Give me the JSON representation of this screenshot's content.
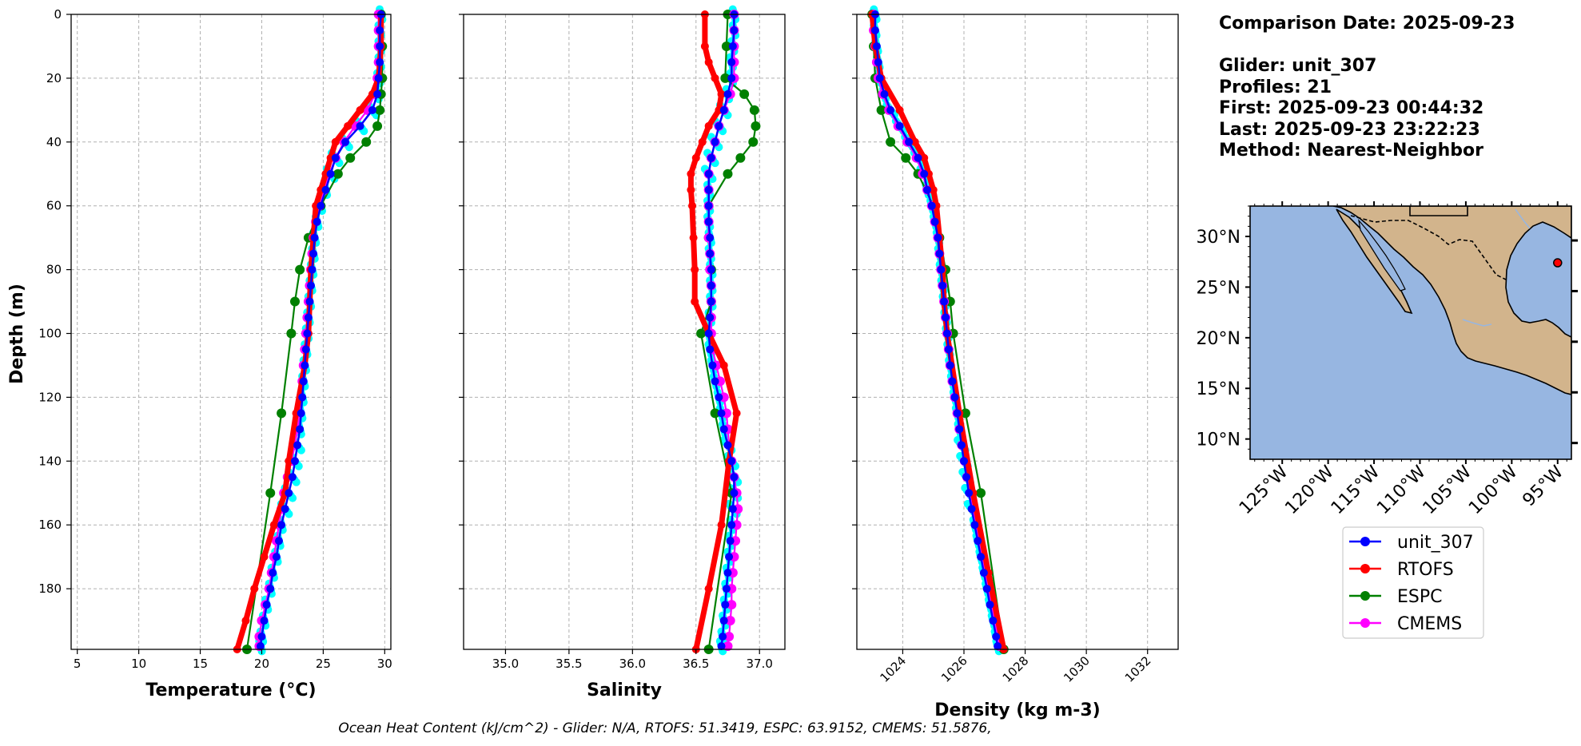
{
  "info": {
    "comparison_date": "Comparison Date: 2025-09-23",
    "glider": "Glider: unit_307",
    "profiles": "Profiles: 21",
    "first": "First: 2025-09-23 00:44:32",
    "last": "Last: 2025-09-23 23:22:23",
    "method": "Method: Nearest-Neighbor"
  },
  "footer": "Ocean Heat Content (kJ/cm^2) - Glider: N/A,  RTOFS: 51.3419,  ESPC: 63.9152,  CMEMS: 51.5876,",
  "colors": {
    "glider": "#0000ff",
    "glider_scatter": "#00ffff",
    "rtofs": "#ff0000",
    "espc": "#008000",
    "cmems": "#ff00ff",
    "ocean": "#97b6e1",
    "land": "#d2b48c"
  },
  "legend": [
    "unit_307",
    "RTOFS",
    "ESPC",
    "CMEMS"
  ],
  "map": {
    "lat_labels": [
      "30°N",
      "25°N",
      "20°N",
      "15°N",
      "10°N"
    ],
    "lon_labels": [
      "125°W",
      "120°W",
      "115°W",
      "110°W",
      "105°W",
      "100°W",
      "95°W"
    ],
    "glider_location": {
      "lon": -95.0,
      "lat": 27.4
    }
  },
  "chart_data": [
    {
      "type": "line",
      "xlabel": "Temperature (°C)",
      "ylabel": "Depth (m)",
      "xlim": [
        4.5,
        30.5
      ],
      "ylim": [
        199,
        0
      ],
      "xticks": [
        5,
        10,
        15,
        20,
        25,
        30
      ],
      "yticks": [
        0,
        20,
        40,
        60,
        80,
        100,
        120,
        140,
        160,
        180
      ],
      "grid": true,
      "series": [
        {
          "name": "unit_307",
          "depth": [
            0,
            5,
            10,
            15,
            20,
            25,
            30,
            35,
            40,
            45,
            50,
            55,
            60,
            65,
            70,
            75,
            80,
            85,
            90,
            95,
            100,
            105,
            110,
            115,
            120,
            125,
            130,
            135,
            140,
            145,
            150,
            155,
            160,
            165,
            170,
            175,
            180,
            185,
            190,
            195,
            198
          ],
          "values": [
            29.7,
            29.6,
            29.6,
            29.6,
            29.5,
            29.4,
            29.0,
            28.0,
            26.8,
            26.0,
            25.6,
            25.2,
            24.8,
            24.5,
            24.3,
            24.2,
            24.1,
            24.0,
            23.9,
            23.8,
            23.7,
            23.6,
            23.5,
            23.4,
            23.3,
            23.2,
            23.1,
            22.9,
            22.7,
            22.5,
            22.2,
            21.9,
            21.6,
            21.4,
            21.2,
            20.9,
            20.7,
            20.4,
            20.2,
            20.0,
            19.9
          ]
        },
        {
          "name": "RTOFS",
          "depth": [
            0,
            10,
            20,
            25,
            30,
            35,
            40,
            45,
            50,
            55,
            60,
            70,
            80,
            90,
            100,
            110,
            125,
            140,
            150,
            160,
            170,
            180,
            190,
            199
          ],
          "values": [
            29.7,
            29.7,
            29.5,
            29.0,
            28.0,
            27.0,
            26.0,
            25.6,
            25.2,
            24.8,
            24.4,
            24.2,
            24.0,
            23.9,
            23.8,
            23.5,
            22.8,
            22.2,
            21.9,
            21.0,
            20.2,
            19.4,
            18.7,
            18.0
          ]
        },
        {
          "name": "ESPC",
          "depth": [
            0,
            10,
            20,
            25,
            30,
            35,
            40,
            45,
            50,
            60,
            70,
            80,
            90,
            100,
            125,
            150,
            199
          ],
          "values": [
            29.7,
            29.8,
            29.8,
            29.7,
            29.6,
            29.4,
            28.5,
            27.2,
            26.2,
            24.8,
            23.8,
            23.1,
            22.7,
            22.4,
            21.6,
            20.7,
            18.8
          ]
        },
        {
          "name": "CMEMS",
          "depth": [
            0,
            5,
            10,
            15,
            20,
            25,
            30,
            35,
            40,
            45,
            50,
            55,
            60,
            65,
            70,
            75,
            80,
            85,
            90,
            95,
            100,
            105,
            110,
            115,
            120,
            125,
            130,
            135,
            140,
            145,
            150,
            155,
            160,
            165,
            170,
            175,
            180,
            185,
            190,
            195,
            198
          ],
          "values": [
            29.5,
            29.5,
            29.5,
            29.5,
            29.4,
            29.2,
            28.6,
            27.6,
            26.7,
            26.0,
            25.5,
            25.1,
            24.7,
            24.4,
            24.2,
            24.1,
            24.0,
            23.9,
            23.8,
            23.7,
            23.6,
            23.5,
            23.4,
            23.3,
            23.2,
            23.1,
            22.9,
            22.7,
            22.4,
            22.1,
            21.8,
            21.6,
            21.4,
            21.2,
            21.0,
            20.8,
            20.6,
            20.3,
            20.0,
            19.8,
            19.8
          ]
        }
      ]
    },
    {
      "type": "line",
      "xlabel": "Salinity",
      "ylim": [
        199,
        0
      ],
      "xlim": [
        34.67,
        37.2
      ],
      "xticks": [
        35.0,
        35.5,
        36.0,
        36.5,
        37.0
      ],
      "grid": true,
      "series": [
        {
          "name": "unit_307",
          "depth": [
            0,
            5,
            10,
            15,
            20,
            25,
            30,
            35,
            40,
            45,
            50,
            55,
            60,
            65,
            70,
            75,
            80,
            85,
            90,
            95,
            100,
            105,
            110,
            115,
            120,
            125,
            130,
            135,
            140,
            145,
            150,
            155,
            160,
            165,
            170,
            175,
            180,
            185,
            190,
            195,
            198
          ],
          "values": [
            36.8,
            36.8,
            36.79,
            36.78,
            36.78,
            36.75,
            36.72,
            36.68,
            36.65,
            36.62,
            36.6,
            36.6,
            36.6,
            36.6,
            36.61,
            36.61,
            36.62,
            36.62,
            36.62,
            36.61,
            36.6,
            36.61,
            36.63,
            36.65,
            36.68,
            36.7,
            36.72,
            36.75,
            36.78,
            36.8,
            36.8,
            36.79,
            36.78,
            36.77,
            36.76,
            36.75,
            36.74,
            36.73,
            36.72,
            36.71,
            36.7
          ]
        },
        {
          "name": "RTOFS",
          "depth": [
            0,
            10,
            15,
            20,
            25,
            30,
            35,
            40,
            45,
            50,
            55,
            60,
            70,
            80,
            90,
            100,
            110,
            125,
            140,
            160,
            180,
            199
          ],
          "values": [
            36.57,
            36.57,
            36.6,
            36.65,
            36.7,
            36.68,
            36.6,
            36.55,
            36.5,
            36.46,
            36.46,
            36.47,
            36.48,
            36.49,
            36.49,
            36.6,
            36.72,
            36.82,
            36.76,
            36.7,
            36.6,
            36.5
          ]
        },
        {
          "name": "ESPC",
          "depth": [
            0,
            10,
            20,
            25,
            30,
            35,
            40,
            45,
            50,
            60,
            70,
            80,
            90,
            100,
            125,
            150,
            199
          ],
          "values": [
            36.75,
            36.74,
            36.73,
            36.88,
            36.96,
            36.97,
            36.95,
            36.85,
            36.75,
            36.6,
            36.6,
            36.62,
            36.62,
            36.54,
            36.65,
            36.78,
            36.6
          ]
        },
        {
          "name": "CMEMS",
          "depth": [
            0,
            5,
            10,
            15,
            20,
            25,
            30,
            35,
            40,
            45,
            50,
            55,
            60,
            65,
            70,
            75,
            80,
            85,
            90,
            95,
            100,
            105,
            110,
            115,
            120,
            125,
            130,
            135,
            140,
            145,
            150,
            155,
            160,
            165,
            170,
            175,
            180,
            185,
            190,
            195,
            198
          ],
          "values": [
            36.8,
            36.8,
            36.8,
            36.8,
            36.8,
            36.77,
            36.72,
            36.68,
            36.65,
            36.62,
            36.6,
            36.6,
            36.6,
            36.6,
            36.6,
            36.61,
            36.61,
            36.62,
            36.62,
            36.62,
            36.62,
            36.63,
            36.66,
            36.69,
            36.72,
            36.74,
            36.75,
            36.76,
            36.78,
            36.8,
            36.82,
            36.83,
            36.82,
            36.81,
            36.8,
            36.79,
            36.78,
            36.78,
            36.77,
            36.76,
            36.75
          ]
        }
      ]
    },
    {
      "type": "line",
      "xlabel": "Density (kg m-3)",
      "ylim": [
        199,
        0
      ],
      "xlim": [
        1022.5,
        1033
      ],
      "xticks": [
        1024,
        1026,
        1028,
        1030,
        1032
      ],
      "grid": true,
      "series": [
        {
          "name": "unit_307",
          "depth": [
            0,
            5,
            10,
            15,
            20,
            25,
            30,
            35,
            40,
            45,
            50,
            55,
            60,
            65,
            70,
            75,
            80,
            85,
            90,
            95,
            100,
            105,
            110,
            115,
            120,
            125,
            130,
            135,
            140,
            145,
            150,
            155,
            160,
            165,
            170,
            175,
            180,
            185,
            190,
            195,
            198
          ],
          "values": [
            1023.1,
            1023.1,
            1023.15,
            1023.2,
            1023.25,
            1023.4,
            1023.6,
            1023.9,
            1024.2,
            1024.5,
            1024.7,
            1024.8,
            1024.95,
            1025.05,
            1025.15,
            1025.2,
            1025.25,
            1025.3,
            1025.35,
            1025.4,
            1025.45,
            1025.5,
            1025.55,
            1025.62,
            1025.7,
            1025.78,
            1025.85,
            1025.92,
            1026.0,
            1026.08,
            1026.16,
            1026.25,
            1026.35,
            1026.45,
            1026.55,
            1026.65,
            1026.75,
            1026.85,
            1026.95,
            1027.05,
            1027.1
          ]
        },
        {
          "name": "RTOFS",
          "depth": [
            0,
            10,
            20,
            30,
            40,
            45,
            50,
            55,
            60,
            70,
            80,
            90,
            100,
            125,
            150,
            175,
            199
          ],
          "values": [
            1023.0,
            1023.1,
            1023.3,
            1023.9,
            1024.4,
            1024.7,
            1024.85,
            1025.0,
            1025.1,
            1025.2,
            1025.3,
            1025.35,
            1025.45,
            1025.85,
            1026.3,
            1026.8,
            1027.3
          ]
        },
        {
          "name": "ESPC",
          "depth": [
            0,
            10,
            20,
            30,
            40,
            45,
            50,
            60,
            70,
            80,
            90,
            100,
            125,
            150,
            199
          ],
          "values": [
            1023.0,
            1023.05,
            1023.1,
            1023.3,
            1023.6,
            1024.1,
            1024.5,
            1025.0,
            1025.2,
            1025.4,
            1025.55,
            1025.65,
            1026.05,
            1026.55,
            1027.3
          ]
        },
        {
          "name": "CMEMS",
          "depth": [
            0,
            5,
            10,
            15,
            20,
            25,
            30,
            35,
            40,
            45,
            50,
            55,
            60,
            65,
            70,
            75,
            80,
            85,
            90,
            95,
            100,
            105,
            110,
            115,
            120,
            125,
            130,
            135,
            140,
            145,
            150,
            155,
            160,
            165,
            170,
            175,
            180,
            185,
            190,
            195,
            198
          ],
          "values": [
            1023.05,
            1023.05,
            1023.1,
            1023.15,
            1023.2,
            1023.35,
            1023.55,
            1023.85,
            1024.15,
            1024.45,
            1024.65,
            1024.8,
            1024.95,
            1025.05,
            1025.15,
            1025.2,
            1025.25,
            1025.3,
            1025.35,
            1025.4,
            1025.45,
            1025.5,
            1025.55,
            1025.62,
            1025.7,
            1025.78,
            1025.85,
            1025.93,
            1026.02,
            1026.1,
            1026.2,
            1026.3,
            1026.4,
            1026.5,
            1026.6,
            1026.7,
            1026.8,
            1026.9,
            1027.0,
            1027.1,
            1027.15
          ]
        }
      ]
    }
  ]
}
